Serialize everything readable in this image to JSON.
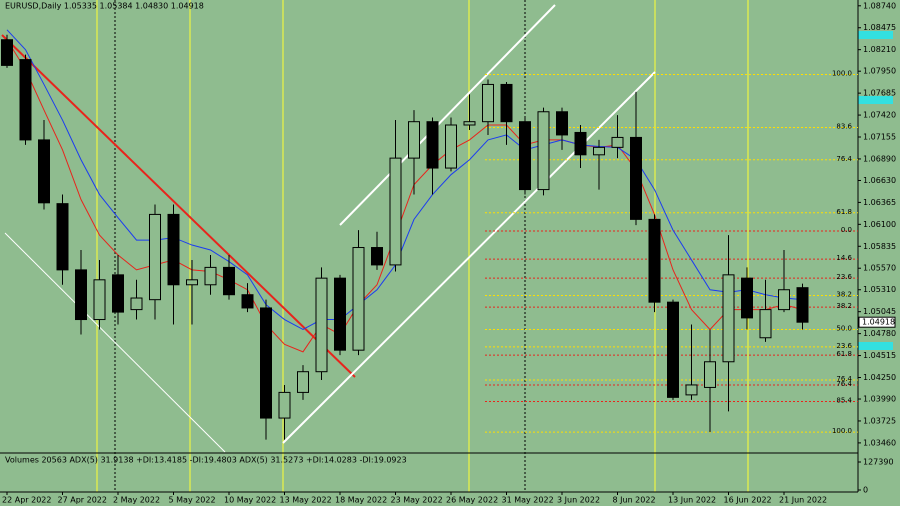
{
  "chart_data": {
    "type": "candlestick",
    "title": "EURUSD,Daily  1.05335 1.05384 1.04830 1.04918",
    "subtitle": "Volumes 20563  ADX(5) 31.9138 +DI:13.4185 -DI:19.4803  ADX(5) 31.5273 +DI:14.0283 -DI:19.0923",
    "categories": [
      "22 Apr 2022",
      null,
      null,
      "27 Apr 2022",
      null,
      null,
      "2 May 2022",
      null,
      null,
      "5 May 2022",
      null,
      null,
      "10 May 2022",
      null,
      null,
      "13 May 2022",
      null,
      null,
      "18 May 2022",
      null,
      null,
      "23 May 2022",
      null,
      null,
      "26 May 2022",
      null,
      null,
      "31 May 2022",
      null,
      null,
      "3 Jun 2022",
      null,
      null,
      "8 Jun 2022",
      null,
      null,
      "13 Jun 2022",
      null,
      null,
      "16 Jun 2022",
      null,
      null,
      "21 Jun 2022",
      null
    ],
    "open": [
      1.0833,
      1.0809,
      1.0712,
      1.0635,
      1.0555,
      1.0495,
      1.0549,
      1.0507,
      1.0519,
      1.0622,
      1.0537,
      1.0537,
      1.0558,
      1.0525,
      1.0509,
      1.0376,
      1.0407,
      1.0432,
      1.0545,
      1.0458,
      1.0582,
      1.0561,
      1.069,
      1.0734,
      1.0678,
      1.073,
      1.0734,
      1.0779,
      1.0734,
      1.0652,
      1.0746,
      1.0721,
      1.0694,
      1.0703,
      1.0715,
      1.0616,
      1.0516,
      1.0404,
      1.0413,
      1.0444,
      1.0545,
      1.0473,
      1.0507,
      1.05335
    ],
    "high": [
      1.0839,
      1.0815,
      1.0736,
      1.0646,
      1.0579,
      1.0567,
      1.0573,
      1.0543,
      1.0634,
      1.0634,
      1.0567,
      1.0573,
      1.0573,
      1.0539,
      1.0519,
      1.0416,
      1.044,
      1.0558,
      1.0549,
      1.0603,
      1.0601,
      1.0736,
      1.0748,
      1.0739,
      1.0739,
      1.0767,
      1.0785,
      1.0782,
      1.0739,
      1.0751,
      1.0751,
      1.073,
      1.0712,
      1.0742,
      1.077,
      1.0622,
      1.0519,
      1.0489,
      1.0483,
      1.0597,
      1.0558,
      1.0543,
      1.0579,
      1.05384
    ],
    "low": [
      1.0799,
      1.0706,
      1.0628,
      1.0537,
      1.0477,
      1.0483,
      1.0489,
      1.0495,
      1.0495,
      1.0489,
      1.0489,
      1.0525,
      1.0519,
      1.0504,
      1.035,
      1.035,
      1.0398,
      1.0422,
      1.0452,
      1.0452,
      1.0555,
      1.0553,
      1.0646,
      1.0646,
      1.0674,
      1.0724,
      1.0718,
      1.0706,
      1.0646,
      1.0645,
      1.07,
      1.0678,
      1.0652,
      1.069,
      1.0609,
      1.0504,
      1.0398,
      1.0398,
      1.0359,
      1.0384,
      1.0483,
      1.0468,
      1.0504,
      1.0483
    ],
    "close": [
      1.0802,
      1.0712,
      1.0636,
      1.0555,
      1.0495,
      1.0543,
      1.0504,
      1.0521,
      1.0622,
      1.0537,
      1.0543,
      1.0558,
      1.0525,
      1.0509,
      1.0376,
      1.0407,
      1.0432,
      1.0545,
      1.0458,
      1.0582,
      1.0561,
      1.069,
      1.0734,
      1.0678,
      1.073,
      1.0734,
      1.0779,
      1.0734,
      1.0652,
      1.0746,
      1.0718,
      1.0694,
      1.0703,
      1.0715,
      1.0616,
      1.0516,
      1.0401,
      1.0416,
      1.0444,
      1.0549,
      1.0497,
      1.0507,
      1.0531,
      1.04918
    ],
    "bull_color": "#8fbc8f",
    "bear_color": "#000000",
    "series": [
      {
        "color": "#e8241c",
        "values": [
          1.0833,
          1.0797,
          1.0748,
          1.07,
          1.064,
          1.0597,
          1.0573,
          1.0555,
          1.0561,
          1.0567,
          1.0555,
          1.0553,
          1.0543,
          1.0531,
          1.0489,
          1.0465,
          1.0456,
          1.0489,
          1.0477,
          1.0513,
          1.0537,
          1.0597,
          1.0658,
          1.0682,
          1.07,
          1.0712,
          1.073,
          1.073,
          1.0706,
          1.0712,
          1.0712,
          1.0706,
          1.0703,
          1.0706,
          1.0676,
          1.0622,
          1.0555,
          1.0507,
          1.0483,
          1.0507,
          1.0507,
          1.0507,
          1.0513,
          1.0507
        ]
      },
      {
        "color": "#1c3cf0",
        "values": [
          1.0845,
          1.0821,
          1.0779,
          1.0736,
          1.0688,
          1.0646,
          1.0618,
          1.0591,
          1.0591,
          1.0594,
          1.0585,
          1.0579,
          1.0565,
          1.0549,
          1.0513,
          1.0495,
          1.0483,
          1.0495,
          1.0495,
          1.0513,
          1.0531,
          1.0561,
          1.0616,
          1.0646,
          1.067,
          1.0688,
          1.0712,
          1.0718,
          1.07,
          1.0706,
          1.0712,
          1.0706,
          1.0704,
          1.0703,
          1.0688,
          1.0652,
          1.0603,
          1.0567,
          1.0531,
          1.0528,
          1.0531,
          1.0525,
          1.0521,
          1.0519
        ]
      }
    ],
    "levels": [
      {
        "label": "100.0",
        "value": 1.0791,
        "color": "#ffe000"
      },
      {
        "label": "83.6",
        "value": 1.0727,
        "color": "#ffe000"
      },
      {
        "label": "76.4",
        "value": 1.0688,
        "color": "#ffe000"
      },
      {
        "label": "61.8",
        "value": 1.0624,
        "color": "#ffe000"
      },
      {
        "label": "0.0",
        "value": 1.0602,
        "color": "#e8241c"
      },
      {
        "label": "14.6",
        "value": 1.0568,
        "color": "#e8241c"
      },
      {
        "label": "23.6",
        "value": 1.0545,
        "color": "#e8241c"
      },
      {
        "label": "38.2",
        "value": 1.0524,
        "color": "#ffe000"
      },
      {
        "label": "38.2",
        "value": 1.051,
        "color": "#e8241c"
      },
      {
        "label": "50.0",
        "value": 1.0483,
        "color": "#ffe000"
      },
      {
        "label": "23.6",
        "value": 1.0462,
        "color": "#ffe000"
      },
      {
        "label": "61.8",
        "value": 1.0452,
        "color": "#e8241c"
      },
      {
        "label": "76.4",
        "value": 1.0422,
        "color": "#ffe000"
      },
      {
        "label": "76.4",
        "value": 1.0416,
        "color": "#e8241c"
      },
      {
        "label": "85.4",
        "value": 1.0396,
        "color": "#e8241c"
      },
      {
        "label": "100.0",
        "value": 1.0359,
        "color": "#ffe000"
      }
    ],
    "ylim": [
      1.0335,
      1.0881
    ],
    "yticks": [
      {
        "value": 1.0874,
        "label": "1.08740"
      },
      {
        "value": 1.08475,
        "label": "1.08475"
      },
      {
        "value": 1.0821,
        "label": "1.08210"
      },
      {
        "value": 1.0795,
        "label": "1.07950"
      },
      {
        "value": 1.07685,
        "label": "1.07685"
      },
      {
        "value": 1.0742,
        "label": "1.07420"
      },
      {
        "value": 1.07155,
        "label": "1.07155"
      },
      {
        "value": 1.0689,
        "label": "1.06890"
      },
      {
        "value": 1.0663,
        "label": "1.06630"
      },
      {
        "value": 1.06365,
        "label": "1.06365"
      },
      {
        "value": 1.061,
        "label": "1.06100"
      },
      {
        "value": 1.05835,
        "label": "1.05835"
      },
      {
        "value": 1.0557,
        "label": "1.05570"
      },
      {
        "value": 1.0531,
        "label": "1.05310"
      },
      {
        "value": 1.05045,
        "label": "1.05045"
      },
      {
        "value": 1.0478,
        "label": "1.04780"
      },
      {
        "value": 1.04515,
        "label": "1.04515"
      },
      {
        "value": 1.0425,
        "label": "1.04250"
      },
      {
        "value": 1.0399,
        "label": "1.03990"
      },
      {
        "value": 1.03725,
        "label": "1.03725"
      },
      {
        "value": 1.0346,
        "label": "1.03460"
      }
    ],
    "y2lim": [
      0,
      127390
    ],
    "y2ticks": [
      0,
      127390
    ],
    "grid": false
  }
}
